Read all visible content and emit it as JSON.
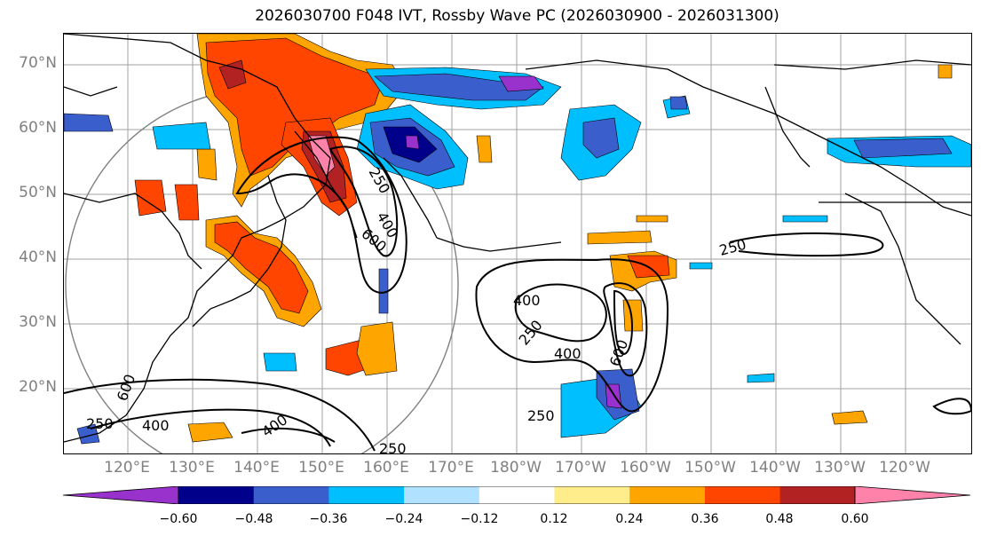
{
  "title": "2026030700 F048 IVT, Rossby Wave PC (2026030900 - 2026031300)",
  "lat_labels": [
    "70°N",
    "60°N",
    "50°N",
    "40°N",
    "30°N",
    "20°N"
  ],
  "lon_labels": [
    "120°E",
    "130°E",
    "140°E",
    "150°E",
    "160°E",
    "170°E",
    "180°W",
    "170°W",
    "160°W",
    "150°W",
    "140°W",
    "130°W",
    "120°W"
  ],
  "contour_labels": [
    "250",
    "400",
    "600",
    "400",
    "250",
    "400",
    "600",
    "250",
    "250",
    "400",
    "600",
    "400",
    "250",
    "250"
  ],
  "colorbar": {
    "colors": [
      "#9932cc",
      "#00008b",
      "#3a5fcd",
      "#00bfff",
      "#b0e2ff",
      "#ffffff",
      "#ffec8b",
      "#ffa500",
      "#ff4500",
      "#b22222",
      "#ff82ab"
    ],
    "ticks": [
      "−0.60",
      "−0.48",
      "−0.36",
      "−0.24",
      "−0.12",
      "0.12",
      "0.24",
      "0.36",
      "0.48",
      "0.60"
    ]
  }
}
